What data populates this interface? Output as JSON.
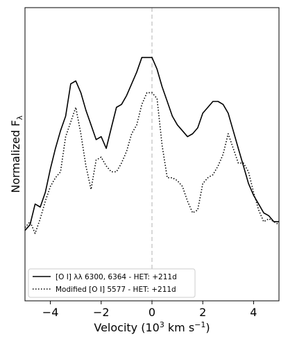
{
  "chart_data": {
    "type": "line",
    "xlabel_main": "Velocity (10",
    "xlabel_sup": "3",
    "xlabel_mid": " km s",
    "xlabel_sup2": "−1",
    "xlabel_end": ")",
    "ylabel_main": "Normalized F",
    "ylabel_sub": "λ",
    "xlim": [
      -5,
      5
    ],
    "ylim": [
      0,
      1
    ],
    "x_ticks": [
      -4,
      -2,
      0,
      2,
      4
    ],
    "x_tick_labels": [
      "−4",
      "−2",
      "0",
      "2",
      "4"
    ],
    "y_ticks_labeled": false,
    "vline": {
      "x": 0,
      "color": "#cccccc",
      "style": "dashed"
    },
    "legend_position": "lower-left",
    "series": [
      {
        "name": "[O I] λλ 6300, 6364 - HET: +211d",
        "style": "solid",
        "color": "#000000",
        "x": [
          -5.0,
          -4.8,
          -4.6,
          -4.4,
          -4.2,
          -4.0,
          -3.8,
          -3.6,
          -3.4,
          -3.2,
          -3.0,
          -2.8,
          -2.6,
          -2.4,
          -2.2,
          -2.0,
          -1.8,
          -1.6,
          -1.4,
          -1.2,
          -1.0,
          -0.8,
          -0.6,
          -0.4,
          -0.2,
          0.0,
          0.2,
          0.4,
          0.6,
          0.8,
          1.0,
          1.2,
          1.4,
          1.6,
          1.8,
          2.0,
          2.2,
          2.4,
          2.6,
          2.8,
          3.0,
          3.2,
          3.4,
          3.6,
          3.8,
          4.0,
          4.2,
          4.4,
          4.6,
          4.8,
          5.0
        ],
        "y": [
          0.24,
          0.26,
          0.33,
          0.32,
          0.37,
          0.45,
          0.52,
          0.58,
          0.63,
          0.74,
          0.75,
          0.71,
          0.65,
          0.6,
          0.55,
          0.56,
          0.52,
          0.59,
          0.66,
          0.67,
          0.7,
          0.74,
          0.78,
          0.83,
          0.83,
          0.83,
          0.79,
          0.73,
          0.68,
          0.63,
          0.6,
          0.58,
          0.56,
          0.57,
          0.59,
          0.64,
          0.66,
          0.68,
          0.68,
          0.67,
          0.64,
          0.58,
          0.52,
          0.46,
          0.4,
          0.36,
          0.33,
          0.3,
          0.29,
          0.27,
          0.27
        ]
      },
      {
        "name": "Modified [O I] 5577 - HET: +211d",
        "style": "dotted",
        "color": "#000000",
        "x": [
          -5.0,
          -4.8,
          -4.6,
          -4.4,
          -4.2,
          -4.0,
          -3.8,
          -3.6,
          -3.4,
          -3.2,
          -3.0,
          -2.8,
          -2.6,
          -2.4,
          -2.2,
          -2.0,
          -1.8,
          -1.6,
          -1.4,
          -1.2,
          -1.0,
          -0.8,
          -0.6,
          -0.4,
          -0.2,
          0.0,
          0.2,
          0.4,
          0.6,
          0.8,
          1.0,
          1.2,
          1.4,
          1.6,
          1.8,
          2.0,
          2.2,
          2.4,
          2.6,
          2.8,
          3.0,
          3.2,
          3.4,
          3.6,
          3.8,
          4.0,
          4.2,
          4.4,
          4.6,
          4.8,
          5.0
        ],
        "y": [
          0.25,
          0.27,
          0.23,
          0.28,
          0.34,
          0.39,
          0.42,
          0.44,
          0.56,
          0.61,
          0.66,
          0.57,
          0.46,
          0.38,
          0.48,
          0.49,
          0.46,
          0.44,
          0.44,
          0.47,
          0.51,
          0.57,
          0.6,
          0.67,
          0.71,
          0.71,
          0.69,
          0.53,
          0.42,
          0.42,
          0.41,
          0.39,
          0.34,
          0.3,
          0.31,
          0.4,
          0.42,
          0.43,
          0.46,
          0.5,
          0.57,
          0.52,
          0.47,
          0.47,
          0.44,
          0.37,
          0.31,
          0.27,
          0.28,
          0.27,
          0.26
        ]
      }
    ]
  }
}
